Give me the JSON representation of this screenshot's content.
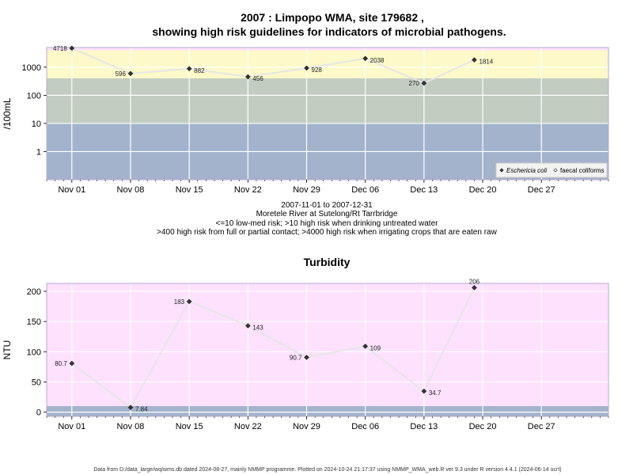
{
  "chart_data": [
    {
      "type": "line",
      "title": "2007 : Limpopo WMA, site 179682 ,",
      "subtitle": "showing high risk guidelines for indicators of microbial pathogens.",
      "ylabel": "/100mL",
      "y_scale": "log",
      "ylim": [
        0.1,
        5000
      ],
      "yticks": [
        1,
        10,
        100,
        1000
      ],
      "ytick_labels": [
        "1",
        "10",
        "100",
        "1000"
      ],
      "xlim": [
        "2007-10-29",
        "2008-01-04"
      ],
      "xticks": [
        "2007-11-01",
        "2007-11-08",
        "2007-11-15",
        "2007-11-22",
        "2007-11-29",
        "2007-12-06",
        "2007-12-13",
        "2007-12-20",
        "2007-12-27"
      ],
      "xtick_labels": [
        "Nov 01",
        "Nov 08",
        "Nov 15",
        "Nov 22",
        "Nov 29",
        "Dec 06",
        "Dec 13",
        "Dec 20",
        "Dec 27"
      ],
      "grid": true,
      "bands": [
        {
          "from": 0.1,
          "to": 10,
          "color": "#a3b3cc"
        },
        {
          "from": 10,
          "to": 400,
          "color": "#c2ccc1"
        },
        {
          "from": 400,
          "to": 4000,
          "color": "#fdf9c9"
        },
        {
          "from": 4000,
          "to": 5000,
          "color": "#fde1fd"
        }
      ],
      "series": [
        {
          "name": "Eschericia coli",
          "marker": "filled",
          "x": [
            "2007-11-01",
            "2007-11-08",
            "2007-11-15",
            "2007-11-22",
            "2007-11-29",
            "2007-12-06",
            "2007-12-13",
            "2007-12-19"
          ],
          "y": [
            4718,
            596,
            882,
            456,
            928,
            2038,
            270,
            1814
          ],
          "labels": [
            "4718",
            "596",
            "882",
            "456",
            "928",
            "2038",
            "270",
            "1814"
          ],
          "label_side": [
            "left",
            "left",
            "right",
            "right",
            "right",
            "right",
            "left",
            "right"
          ]
        }
      ],
      "legend": {
        "placement": "bottom-right",
        "entries": [
          {
            "label": "Eschericia coli",
            "marker": "filled"
          },
          {
            "label": "faecal coliforms",
            "marker": "open"
          }
        ]
      },
      "captions": [
        "2007-11-01 to 2007-12-31",
        "Moretele River at Sutelong/Rt Tarrbridge",
        "<=10 low-med risk; >10 high risk when drinking untreated water",
        ">400 high risk from full or partial contact; >4000 high risk when irrigating crops that are eaten raw"
      ]
    },
    {
      "type": "line",
      "title": "Turbidity",
      "ylabel": "NTU",
      "ylim": [
        -7,
        213
      ],
      "yticks": [
        0,
        50,
        100,
        150,
        200
      ],
      "ytick_labels": [
        "0",
        "50",
        "100",
        "150",
        "200"
      ],
      "xlim": [
        "2007-10-29",
        "2008-01-04"
      ],
      "xticks": [
        "2007-11-01",
        "2007-11-08",
        "2007-11-15",
        "2007-11-22",
        "2007-11-29",
        "2007-12-06",
        "2007-12-13",
        "2007-12-20",
        "2007-12-27"
      ],
      "xtick_labels": [
        "Nov 01",
        "Nov 08",
        "Nov 15",
        "Nov 22",
        "Nov 29",
        "Dec 06",
        "Dec 13",
        "Dec 20",
        "Dec 27"
      ],
      "grid": true,
      "bands": [
        {
          "from": -7,
          "to": 10,
          "color": "#a3b3cc"
        },
        {
          "from": 10,
          "to": 213,
          "color": "#fde1fd"
        }
      ],
      "series": [
        {
          "marker": "filled",
          "x": [
            "2007-11-01",
            "2007-11-08",
            "2007-11-15",
            "2007-11-22",
            "2007-11-29",
            "2007-12-06",
            "2007-12-13",
            "2007-12-19"
          ],
          "y": [
            80.7,
            7.84,
            183,
            143,
            90.7,
            109,
            34.7,
            206
          ],
          "labels": [
            "80.7",
            "7.84",
            "183",
            "143",
            "90.7",
            "109",
            "34.7",
            "206"
          ],
          "label_side": [
            "left",
            "right",
            "left",
            "right",
            "left",
            "right",
            "right",
            "above"
          ]
        }
      ]
    }
  ],
  "footer": "Data from D:/data_large/wq/wms.db dated 2024-08-27, mainly NMMP programme. Plotted on 2024-10-24 21:17:37 using NMMP_WMA_web.R ver 9.3 under R version 4.4.1 (2024-06-14 ucrt)"
}
